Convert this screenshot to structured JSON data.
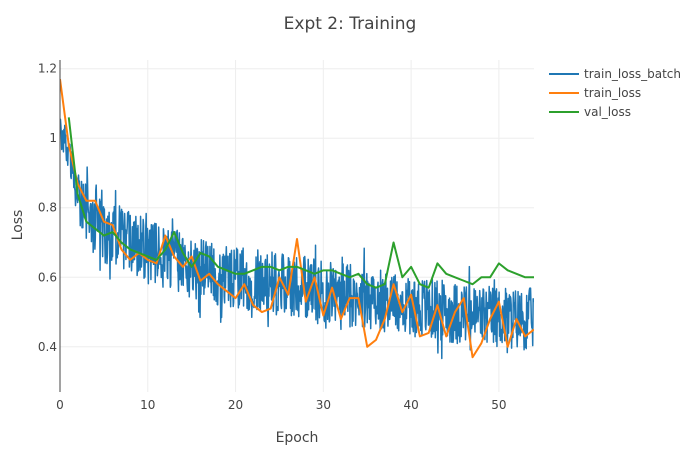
{
  "chart_data": {
    "type": "line",
    "title": "Expt 2: Training",
    "xlabel": "Epoch",
    "ylabel": "Loss",
    "xlim": [
      0,
      54
    ],
    "ylim": [
      0.27,
      1.225
    ],
    "x_ticks": [
      0,
      10,
      20,
      30,
      40,
      50
    ],
    "y_ticks": [
      0.4,
      0.6,
      0.8,
      1,
      1.2
    ],
    "grid": true,
    "legend_position": "top-right",
    "series": [
      {
        "name": "train_loss_batch",
        "color": "#1f77b4",
        "style": "noisy",
        "x": [
          0,
          1,
          2,
          3,
          4,
          5,
          6,
          7,
          8,
          9,
          10,
          12,
          14,
          16,
          18,
          20,
          22,
          24,
          26,
          28,
          30,
          32,
          34,
          36,
          38,
          40,
          42,
          44,
          46,
          48,
          50,
          52,
          54
        ],
        "y": [
          1.02,
          0.96,
          0.84,
          0.79,
          0.76,
          0.74,
          0.72,
          0.71,
          0.7,
          0.69,
          0.67,
          0.66,
          0.64,
          0.62,
          0.61,
          0.6,
          0.59,
          0.585,
          0.575,
          0.57,
          0.56,
          0.555,
          0.545,
          0.535,
          0.53,
          0.52,
          0.51,
          0.5,
          0.495,
          0.49,
          0.485,
          0.48,
          0.48
        ],
        "noise_amplitude": 0.09
      },
      {
        "name": "train_loss",
        "color": "#ff7f0e",
        "style": "line",
        "x": [
          0,
          1,
          2,
          3,
          4,
          5,
          6,
          7,
          8,
          9,
          10,
          11,
          12,
          13,
          14,
          15,
          16,
          17,
          18,
          19,
          20,
          21,
          22,
          23,
          24,
          25,
          26,
          27,
          28,
          29,
          30,
          31,
          32,
          33,
          34,
          35,
          36,
          37,
          38,
          39,
          40,
          41,
          42,
          43,
          44,
          45,
          46,
          47,
          48,
          49,
          50,
          51,
          52,
          53,
          54
        ],
        "y": [
          1.17,
          0.98,
          0.87,
          0.82,
          0.82,
          0.76,
          0.75,
          0.68,
          0.65,
          0.67,
          0.65,
          0.64,
          0.72,
          0.66,
          0.63,
          0.66,
          0.59,
          0.61,
          0.58,
          0.56,
          0.54,
          0.58,
          0.52,
          0.5,
          0.51,
          0.6,
          0.55,
          0.71,
          0.53,
          0.6,
          0.49,
          0.57,
          0.48,
          0.54,
          0.54,
          0.4,
          0.42,
          0.48,
          0.58,
          0.5,
          0.55,
          0.43,
          0.44,
          0.52,
          0.43,
          0.5,
          0.54,
          0.37,
          0.41,
          0.48,
          0.53,
          0.4,
          0.48,
          0.43,
          0.45
        ]
      },
      {
        "name": "val_loss",
        "color": "#2ca02c",
        "style": "line",
        "x": [
          1,
          2,
          3,
          4,
          5,
          6,
          7,
          8,
          9,
          10,
          11,
          12,
          13,
          14,
          15,
          16,
          17,
          18,
          19,
          20,
          21,
          22,
          23,
          24,
          25,
          26,
          27,
          28,
          29,
          30,
          31,
          32,
          33,
          34,
          35,
          36,
          37,
          38,
          39,
          40,
          41,
          42,
          43,
          44,
          45,
          46,
          47,
          48,
          49,
          50,
          51,
          52,
          53,
          54
        ],
        "y": [
          1.06,
          0.84,
          0.76,
          0.74,
          0.72,
          0.73,
          0.7,
          0.68,
          0.67,
          0.66,
          0.65,
          0.68,
          0.73,
          0.67,
          0.63,
          0.67,
          0.66,
          0.63,
          0.62,
          0.61,
          0.61,
          0.62,
          0.63,
          0.63,
          0.62,
          0.63,
          0.63,
          0.62,
          0.61,
          0.62,
          0.62,
          0.61,
          0.6,
          0.61,
          0.58,
          0.57,
          0.58,
          0.7,
          0.6,
          0.63,
          0.58,
          0.57,
          0.64,
          0.61,
          0.6,
          0.59,
          0.58,
          0.6,
          0.6,
          0.64,
          0.62,
          0.61,
          0.6,
          0.6
        ]
      }
    ]
  }
}
